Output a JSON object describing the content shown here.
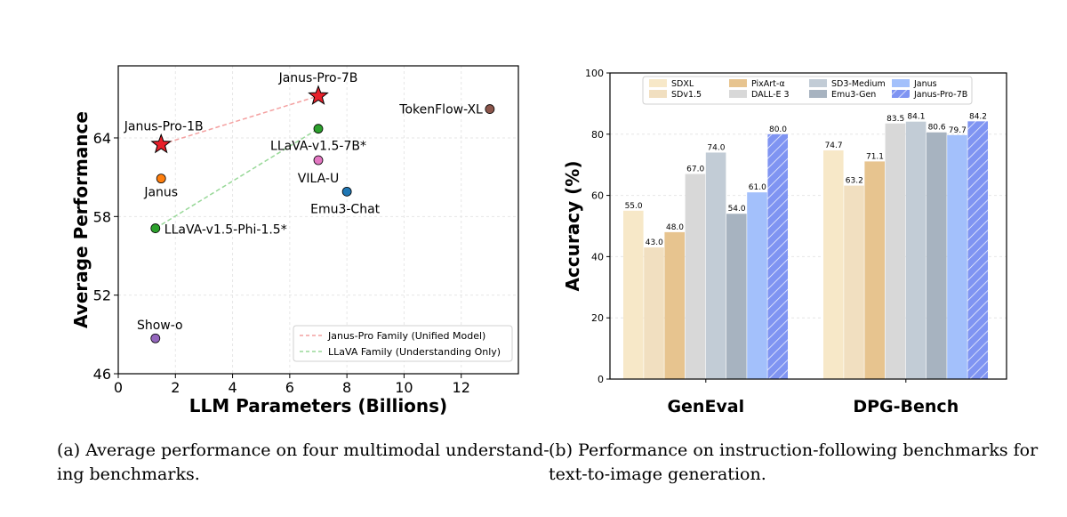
{
  "chart_data": [
    {
      "type": "scatter",
      "xlabel": "LLM Parameters (Billions)",
      "ylabel": "Average Performance",
      "xlim": [
        0,
        14
      ],
      "ylim": [
        46,
        69.5
      ],
      "xticks": [
        0,
        2,
        4,
        6,
        8,
        10,
        12
      ],
      "yticks": [
        46,
        52,
        58,
        64
      ],
      "grid": true,
      "legend_position": "lower-right",
      "points": [
        {
          "name": "Janus-Pro-7B",
          "x": 7.0,
          "y": 67.2,
          "color": "#e8202a",
          "marker": "star"
        },
        {
          "name": "Janus-Pro-1B",
          "x": 1.5,
          "y": 63.5,
          "color": "#e8202a",
          "marker": "star"
        },
        {
          "name": "TokenFlow-XL",
          "x": 13.0,
          "y": 66.2,
          "color": "#8c564b",
          "marker": "circle"
        },
        {
          "name": "LLaVA-v1.5-7B*",
          "x": 7.0,
          "y": 64.7,
          "color": "#2ca02c",
          "marker": "circle"
        },
        {
          "name": "VILA-U",
          "x": 7.0,
          "y": 62.3,
          "color": "#e377c2",
          "marker": "circle"
        },
        {
          "name": "Janus",
          "x": 1.5,
          "y": 60.9,
          "color": "#ff7f0e",
          "marker": "circle"
        },
        {
          "name": "Emu3-Chat",
          "x": 8.0,
          "y": 59.9,
          "color": "#1f77b4",
          "marker": "circle"
        },
        {
          "name": "LLaVA-v1.5-Phi-1.5*",
          "x": 1.3,
          "y": 57.1,
          "color": "#2ca02c",
          "marker": "circle"
        },
        {
          "name": "Show-o",
          "x": 1.3,
          "y": 48.7,
          "color": "#9467bd",
          "marker": "circle"
        }
      ],
      "lines": [
        {
          "name": "Janus-Pro Family (Unified Model)",
          "from": "Janus-Pro-1B",
          "to": "Janus-Pro-7B",
          "color": "#f4a0a0"
        },
        {
          "name": "LLaVA Family (Understanding Only)",
          "from": "LLaVA-v1.5-Phi-1.5*",
          "to": "LLaVA-v1.5-7B*",
          "color": "#98d898"
        }
      ]
    },
    {
      "type": "bar",
      "ylabel": "Accuracy (%)",
      "ylim": [
        0,
        100
      ],
      "yticks": [
        0,
        20,
        40,
        60,
        80,
        100
      ],
      "grid": true,
      "legend_position": "top",
      "categories": [
        "GenEval",
        "DPG-Bench"
      ],
      "series": [
        {
          "name": "SDXL",
          "values": [
            55.0,
            74.7
          ],
          "color": "#f7e8c8"
        },
        {
          "name": "SDv1.5",
          "values": [
            43.0,
            63.2
          ],
          "color": "#f1dfc0"
        },
        {
          "name": "PixArt-α",
          "values": [
            48.0,
            71.1
          ],
          "color": "#e7c48f"
        },
        {
          "name": "DALL-E 3",
          "values": [
            67.0,
            83.5
          ],
          "color": "#d8d8d8"
        },
        {
          "name": "SD3-Medium",
          "values": [
            74.0,
            84.1
          ],
          "color": "#c2ccd6"
        },
        {
          "name": "Emu3-Gen",
          "values": [
            54.0,
            80.6
          ],
          "color": "#a7b3c0"
        },
        {
          "name": "Janus",
          "values": [
            61.0,
            79.7
          ],
          "color": "#a3c0fb"
        },
        {
          "name": "Janus-Pro-7B",
          "values": [
            80.0,
            84.2
          ],
          "color": "#7f94f2",
          "hatch": true
        }
      ],
      "value_labels": [
        [
          "55.0",
          "43.0",
          "48.0",
          "67.0",
          "74.0",
          "54.0",
          "61.0",
          "80.0"
        ],
        [
          "74.7",
          "63.2",
          "71.1",
          "83.5",
          "84.1",
          "80.6",
          "79.7",
          "84.2"
        ]
      ]
    }
  ],
  "captions": {
    "a_line1": "(a)  Average performance on four multimodal understand-",
    "a_line2": "ing benchmarks.",
    "b_line1": "(b)  Performance on instruction-following benchmarks for",
    "b_line2": "text-to-image generation."
  }
}
